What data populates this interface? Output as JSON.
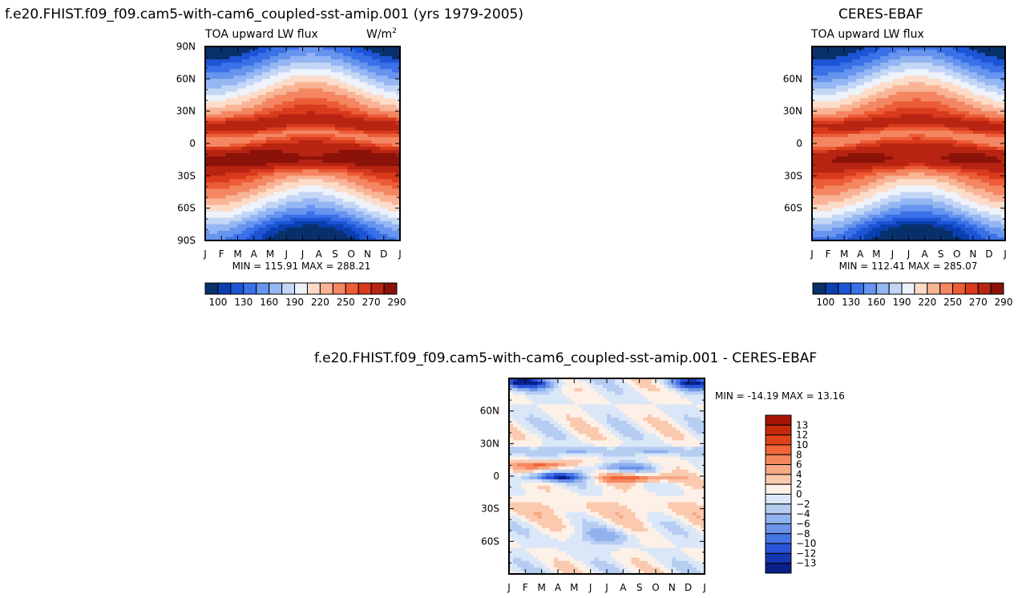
{
  "figure": {
    "title_left": "f.e20.FHIST.f09_f09.cam5-with-cam6_coupled-sst-amip.001 (yrs 1979-2005)",
    "title_right": "CERES-EBAF",
    "title_diff": "f.e20.FHIST.f09_f09.cam5-with-cam6_coupled-sst-amip.001 - CERES-EBAF"
  },
  "chart_data": [
    {
      "type": "heatmap",
      "id": "model",
      "title": "TOA upward LW flux",
      "units": "W/m²",
      "units_base": "W/m",
      "units_sup": "2",
      "x_ticks": [
        "J",
        "F",
        "M",
        "A",
        "M",
        "J",
        "J",
        "A",
        "S",
        "O",
        "N",
        "D",
        "J"
      ],
      "y_ticks": [
        {
          "lat": 90,
          "label": "90N"
        },
        {
          "lat": 60,
          "label": "60N"
        },
        {
          "lat": 30,
          "label": "30N"
        },
        {
          "lat": 0,
          "label": "0"
        },
        {
          "lat": -30,
          "label": "30S"
        },
        {
          "lat": -60,
          "label": "60S"
        },
        {
          "lat": -90,
          "label": "90S"
        }
      ],
      "ylim": [
        -90,
        90
      ],
      "stats": "MIN = 115.91  MAX = 288.21",
      "min": 115.91,
      "max": 288.21
    },
    {
      "type": "heatmap",
      "id": "obs",
      "title": "TOA upward LW flux",
      "x_ticks": [
        "J",
        "F",
        "M",
        "A",
        "M",
        "J",
        "J",
        "A",
        "S",
        "O",
        "N",
        "D",
        "J"
      ],
      "y_ticks": [
        {
          "lat": 60,
          "label": "60N"
        },
        {
          "lat": 30,
          "label": "30N"
        },
        {
          "lat": 0,
          "label": "0"
        },
        {
          "lat": -30,
          "label": "30S"
        },
        {
          "lat": -60,
          "label": "60S"
        }
      ],
      "ylim": [
        -90,
        90
      ],
      "stats": "MIN = 112.41  MAX = 285.07",
      "min": 112.41,
      "max": 285.07
    },
    {
      "type": "heatmap",
      "id": "diff",
      "x_ticks": [
        "J",
        "F",
        "M",
        "A",
        "M",
        "J",
        "J",
        "A",
        "S",
        "O",
        "N",
        "D",
        "J"
      ],
      "y_ticks": [
        {
          "lat": 60,
          "label": "60N"
        },
        {
          "lat": 30,
          "label": "30N"
        },
        {
          "lat": 0,
          "label": "0"
        },
        {
          "lat": -30,
          "label": "30S"
        },
        {
          "lat": -60,
          "label": "60S"
        }
      ],
      "ylim": [
        -90,
        90
      ],
      "stats": "MIN = -14.19  MAX =  13.16",
      "min": -14.19,
      "max": 13.16
    }
  ],
  "colorbar_main": {
    "colors": [
      "#08306b",
      "#0b3fb0",
      "#1d55d6",
      "#3b71e8",
      "#6694ee",
      "#94b6f2",
      "#c3d6f6",
      "#eef2fb",
      "#fcdcc8",
      "#f9b496",
      "#f48662",
      "#ec5c36",
      "#d93a1c",
      "#b82412",
      "#8a1208"
    ],
    "labels": [
      "100",
      "130",
      "160",
      "190",
      "220",
      "250",
      "270",
      "290"
    ]
  },
  "colorbar_diff": {
    "colors": [
      "#a81505",
      "#c52a0b",
      "#e0431a",
      "#f2653a",
      "#f5875e",
      "#f7a885",
      "#fbc9ae",
      "#fdf0e6",
      "#dae7f8",
      "#b6cdf2",
      "#92b2ee",
      "#6c93ea",
      "#4875e4",
      "#2a55d8",
      "#1238b2",
      "#0a1f88"
    ],
    "labels": [
      "13",
      "12",
      "10",
      "8",
      "6",
      "4",
      "2",
      "0",
      "−2",
      "−4",
      "−6",
      "−8",
      "−10",
      "−12",
      "−13"
    ]
  }
}
